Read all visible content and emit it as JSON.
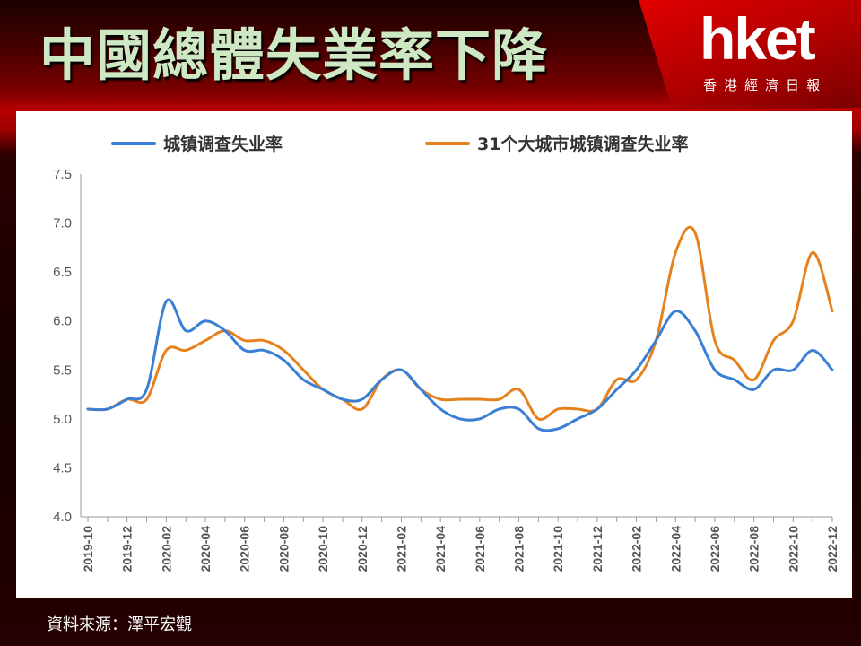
{
  "header": {
    "title": "中國總體失業率下降",
    "logo_text": "hket",
    "logo_subtitle": "香港經濟日報"
  },
  "footer": {
    "source": "資料來源：澤平宏觀"
  },
  "colors": {
    "series1": "#3a7fd5",
    "series2": "#e6821e",
    "title": "#cfe8c4",
    "brand_red": "#d00000"
  },
  "chart_data": {
    "type": "line",
    "xlabel": "",
    "ylabel": "",
    "ylim": [
      4.0,
      7.5
    ],
    "yticks": [
      "4.0",
      "4.5",
      "5.0",
      "5.5",
      "6.0",
      "6.5",
      "7.0",
      "7.5"
    ],
    "grid": false,
    "legend_position": "top",
    "x": [
      "2019-10",
      "2019-11",
      "2019-12",
      "2020-01",
      "2020-02",
      "2020-03",
      "2020-04",
      "2020-05",
      "2020-06",
      "2020-07",
      "2020-08",
      "2020-09",
      "2020-10",
      "2020-11",
      "2020-12",
      "2021-01",
      "2021-02",
      "2021-03",
      "2021-04",
      "2021-05",
      "2021-06",
      "2021-07",
      "2021-08",
      "2021-09",
      "2021-10",
      "2021-11",
      "2021-12",
      "2022-01",
      "2022-02",
      "2022-03",
      "2022-04",
      "2022-05",
      "2022-06",
      "2022-07",
      "2022-08",
      "2022-09",
      "2022-10",
      "2022-11",
      "2022-12"
    ],
    "xtick_labels": [
      "2019-10",
      "2019-12",
      "2020-02",
      "2020-04",
      "2020-06",
      "2020-08",
      "2020-10",
      "2020-12",
      "2021-02",
      "2021-04",
      "2021-06",
      "2021-08",
      "2021-10",
      "2021-12",
      "2022-02",
      "2022-04",
      "2022-06",
      "2022-08",
      "2022-10",
      "2022-12"
    ],
    "series": [
      {
        "name": "城镇调查失业率",
        "values": [
          5.1,
          5.1,
          5.2,
          5.3,
          6.2,
          5.9,
          6.0,
          5.9,
          5.7,
          5.7,
          5.6,
          5.4,
          5.3,
          5.2,
          5.2,
          5.4,
          5.5,
          5.3,
          5.1,
          5.0,
          5.0,
          5.1,
          5.1,
          4.9,
          4.9,
          5.0,
          5.1,
          5.3,
          5.5,
          5.8,
          6.1,
          5.9,
          5.5,
          5.4,
          5.3,
          5.5,
          5.5,
          5.7,
          5.5
        ]
      },
      {
        "name": "31个大城市城镇调查失业率",
        "values": [
          5.1,
          5.1,
          5.2,
          5.2,
          5.7,
          5.7,
          5.8,
          5.9,
          5.8,
          5.8,
          5.7,
          5.5,
          5.3,
          5.2,
          5.1,
          5.4,
          5.5,
          5.3,
          5.2,
          5.2,
          5.2,
          5.2,
          5.3,
          5.0,
          5.1,
          5.1,
          5.1,
          5.4,
          5.4,
          5.8,
          6.7,
          6.9,
          5.8,
          5.6,
          5.4,
          5.8,
          6.0,
          6.7,
          6.1
        ]
      }
    ]
  }
}
